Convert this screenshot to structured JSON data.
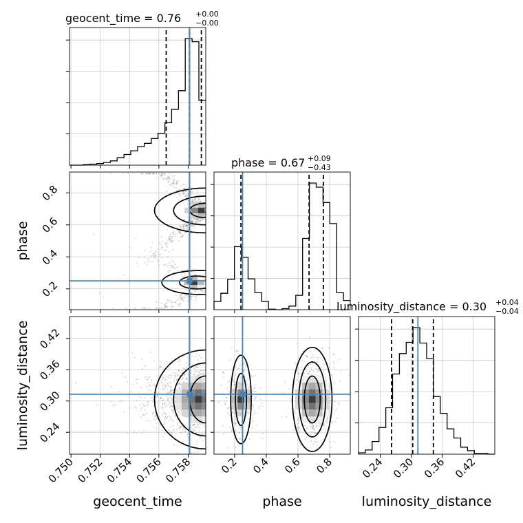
{
  "chart_data": {
    "type": "corner",
    "parameters": [
      "geocent_time",
      "phase",
      "luminosity_distance"
    ],
    "axis_labels": [
      "geocent_time",
      "phase",
      "luminosity_distance"
    ],
    "ranges": {
      "geocent_time": [
        0.7499,
        0.7592
      ],
      "phase": [
        0.07,
        0.93
      ],
      "luminosity_distance": [
        0.198,
        0.462
      ]
    },
    "ticks": {
      "geocent_time": [
        0.75,
        0.752,
        0.754,
        0.756,
        0.758
      ],
      "phase": [
        0.2,
        0.4,
        0.6,
        0.8
      ],
      "luminosity_distance": [
        0.24,
        0.3,
        0.36,
        0.42
      ]
    },
    "tick_labels": {
      "geocent_time": [
        "0.750",
        "0.752",
        "0.754",
        "0.756",
        "0.758"
      ],
      "phase": [
        "0.2",
        "0.4",
        "0.6",
        "0.8"
      ],
      "luminosity_distance": [
        "0.24",
        "0.30",
        "0.36",
        "0.42"
      ]
    },
    "titles": [
      {
        "name": "geocent_time",
        "median": "0.76",
        "plus": "+0.00",
        "minus": "−0.00"
      },
      {
        "name": "phase",
        "median": "0.67",
        "plus": "+0.09",
        "minus": "−0.43"
      },
      {
        "name": "luminosity_distance",
        "median": "0.30",
        "plus": "+0.04",
        "minus": "−0.04"
      }
    ],
    "truths": {
      "geocent_time": 0.7581,
      "phase": 0.25,
      "luminosity_distance": 0.313
    },
    "quantiles": {
      "geocent_time": [
        0.7565,
        0.7581,
        0.7589
      ],
      "phase": [
        0.24,
        0.67,
        0.76
      ],
      "luminosity_distance": [
        0.262,
        0.303,
        0.343
      ]
    },
    "histograms": {
      "geocent_time": {
        "edges": [
          0.7499,
          0.75036,
          0.75083,
          0.75129,
          0.75176,
          0.75222,
          0.75269,
          0.75315,
          0.75362,
          0.75408,
          0.75455,
          0.75501,
          0.75548,
          0.75594,
          0.75641,
          0.75687,
          0.75734,
          0.7578,
          0.75827,
          0.75873,
          0.7592
        ],
        "counts": [
          0,
          0,
          1,
          2,
          3,
          5,
          8,
          14,
          20,
          27,
          35,
          41,
          50,
          60,
          80,
          105,
          140,
          238,
          232,
          122
        ]
      },
      "phase": {
        "edges": [
          0.07,
          0.113,
          0.156,
          0.199,
          0.242,
          0.285,
          0.328,
          0.371,
          0.414,
          0.457,
          0.5,
          0.543,
          0.586,
          0.629,
          0.672,
          0.715,
          0.758,
          0.801,
          0.844,
          0.887,
          0.93
        ],
        "counts": [
          16,
          32,
          59,
          123,
          102,
          60,
          33,
          16,
          1,
          0,
          2,
          7,
          28,
          139,
          247,
          239,
          209,
          168,
          33,
          18
        ]
      },
      "luminosity_distance": {
        "edges": [
          0.198,
          0.2112,
          0.2244,
          0.2376,
          0.2508,
          0.264,
          0.2772,
          0.2904,
          0.3036,
          0.3168,
          0.33,
          0.3432,
          0.3564,
          0.3696,
          0.3828,
          0.396,
          0.4092,
          0.4224,
          0.4356,
          0.4488,
          0.462
        ],
        "counts": [
          2,
          6,
          18,
          38,
          66,
          114,
          143,
          159,
          180,
          158,
          136,
          82,
          58,
          36,
          23,
          10,
          5,
          1,
          1,
          0
        ]
      }
    }
  }
}
